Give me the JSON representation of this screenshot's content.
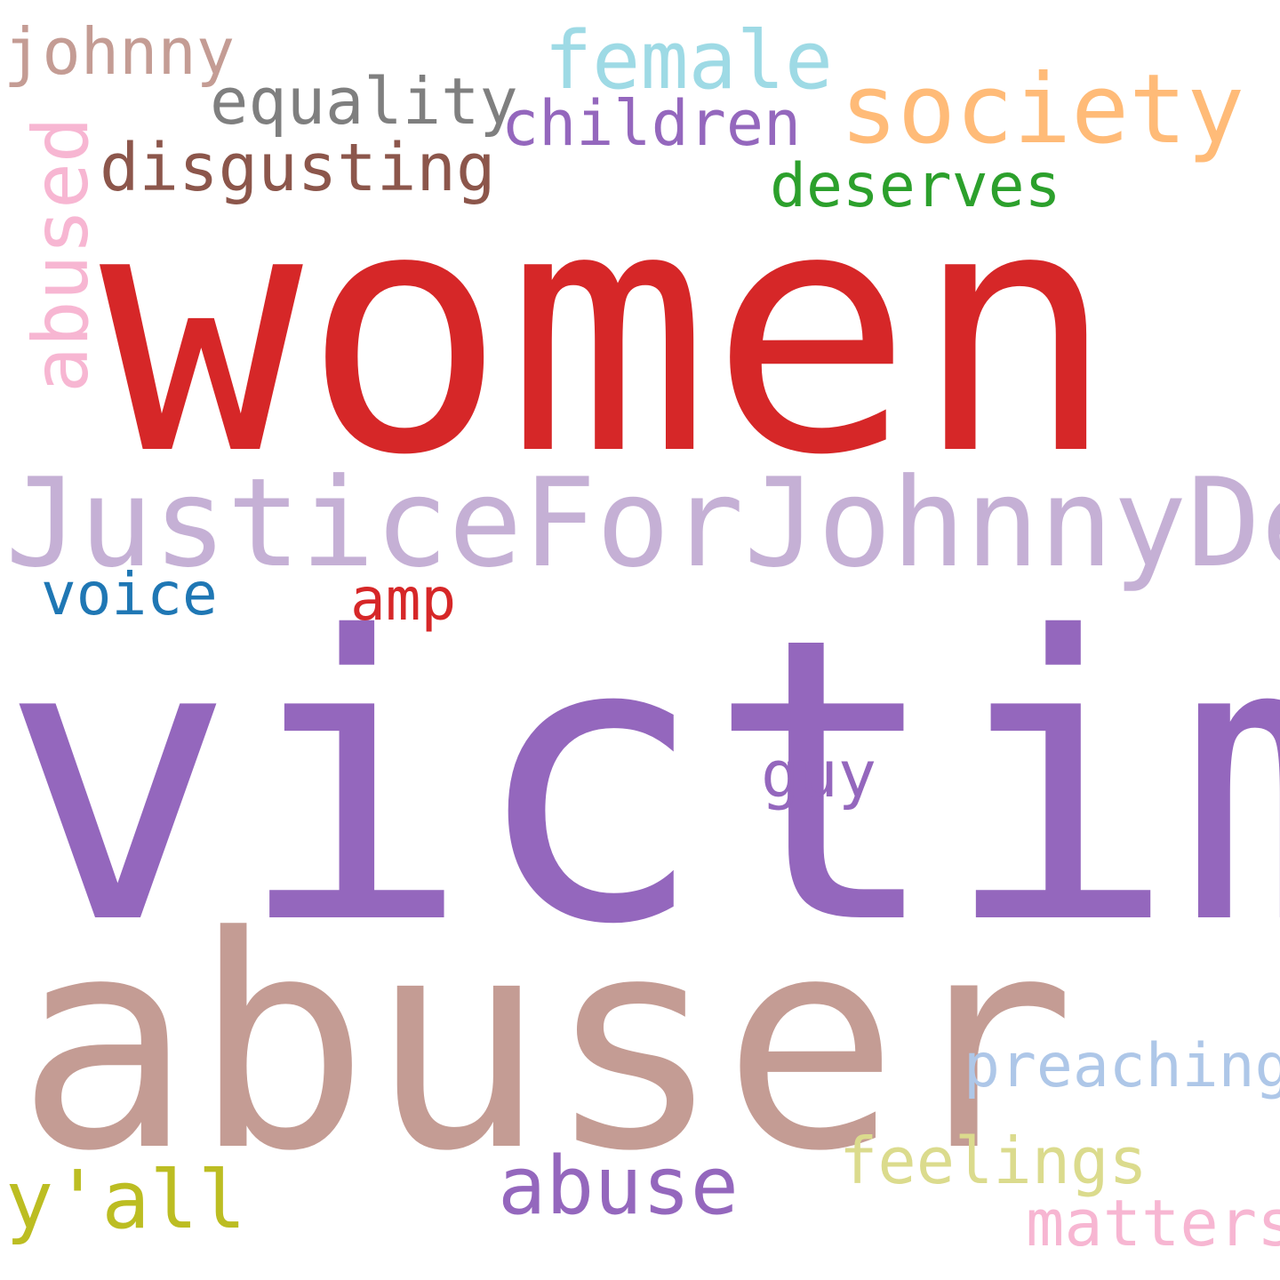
{
  "words": {
    "women": {
      "text": "women",
      "color": "#d62728"
    },
    "victim": {
      "text": "victim",
      "color": "#9467bd"
    },
    "abuser": {
      "text": "abuser",
      "color": "#c49c94"
    },
    "justice": {
      "text": "JusticeForJohnnyDepp",
      "color": "#c5b0d5"
    },
    "society": {
      "text": "society",
      "color": "#ffbb78"
    },
    "female": {
      "text": "female",
      "color": "#9edae5"
    },
    "johnny": {
      "text": "johnny",
      "color": "#c49c94"
    },
    "equality": {
      "text": "equality",
      "color": "#7f7f7f"
    },
    "children": {
      "text": "children",
      "color": "#9467bd"
    },
    "disgusting": {
      "text": "disgusting",
      "color": "#8c564b"
    },
    "deserves": {
      "text": "deserves",
      "color": "#2ca02c"
    },
    "abused": {
      "text": "abused",
      "color": "#f7b6d2"
    },
    "voice": {
      "text": "voice",
      "color": "#1f77b4"
    },
    "amp": {
      "text": "amp",
      "color": "#d62728"
    },
    "guy": {
      "text": "guy",
      "color": "#9467bd"
    },
    "preaching": {
      "text": "preaching",
      "color": "#aec7e8"
    },
    "feelings": {
      "text": "feelings",
      "color": "#dbdb8d"
    },
    "abuse": {
      "text": "abuse",
      "color": "#9467bd"
    },
    "yall": {
      "text": "y'all",
      "color": "#bcbd22"
    },
    "matters": {
      "text": "matters",
      "color": "#f7b6d2"
    }
  }
}
